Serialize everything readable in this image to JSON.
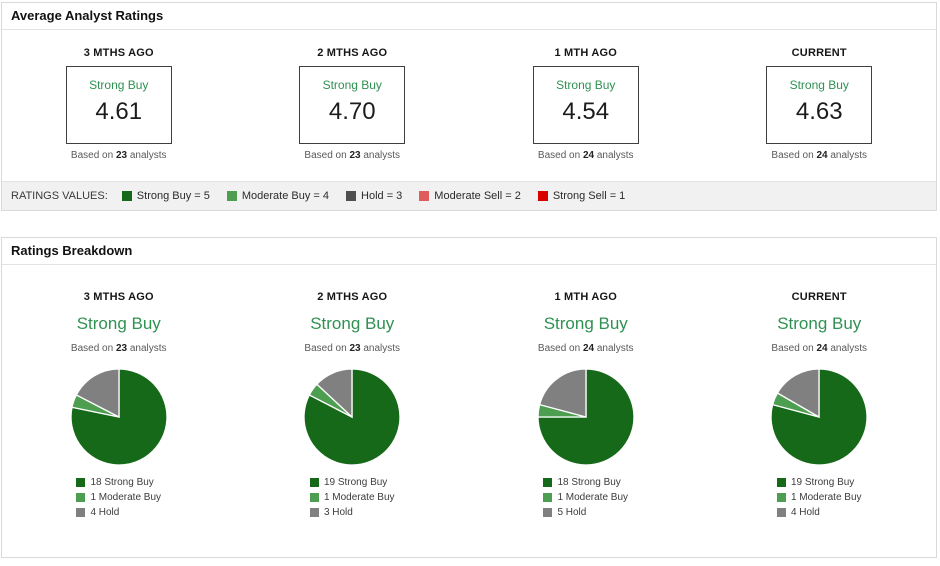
{
  "ratings": {
    "title": "Average Analyst Ratings",
    "based_prefix": "Based on",
    "based_suffix": "analysts",
    "legend_title": "RATINGS VALUES:",
    "columns": [
      {
        "period": "3 MTHS AGO",
        "label": "Strong Buy",
        "value": "4.61",
        "analysts": "23"
      },
      {
        "period": "2 MTHS AGO",
        "label": "Strong Buy",
        "value": "4.70",
        "analysts": "23"
      },
      {
        "period": "1 MTH AGO",
        "label": "Strong Buy",
        "value": "4.54",
        "analysts": "24"
      },
      {
        "period": "CURRENT",
        "label": "Strong Buy",
        "value": "4.63",
        "analysts": "24"
      }
    ],
    "legend": [
      {
        "label": "Strong Buy = 5",
        "color": "#156919"
      },
      {
        "label": "Moderate Buy = 4",
        "color": "#4d9e50"
      },
      {
        "label": "Hold = 3",
        "color": "#4f4f4f"
      },
      {
        "label": "Moderate Sell = 2",
        "color": "#e05c5c"
      },
      {
        "label": "Strong Sell = 1",
        "color": "#d90000"
      }
    ]
  },
  "breakdown": {
    "title": "Ratings Breakdown",
    "based_prefix": "Based on",
    "based_suffix": "analysts",
    "columns": [
      {
        "period": "3 MTHS AGO",
        "label": "Strong Buy",
        "analysts": "23",
        "slices": [
          {
            "label": "18 Strong Buy",
            "value": 18,
            "color": "#156919"
          },
          {
            "label": "1 Moderate Buy",
            "value": 1,
            "color": "#4d9e50"
          },
          {
            "label": "4 Hold",
            "value": 4,
            "color": "#808080"
          }
        ]
      },
      {
        "period": "2 MTHS AGO",
        "label": "Strong Buy",
        "analysts": "23",
        "slices": [
          {
            "label": "19 Strong Buy",
            "value": 19,
            "color": "#156919"
          },
          {
            "label": "1 Moderate Buy",
            "value": 1,
            "color": "#4d9e50"
          },
          {
            "label": "3 Hold",
            "value": 3,
            "color": "#808080"
          }
        ]
      },
      {
        "period": "1 MTH AGO",
        "label": "Strong Buy",
        "analysts": "24",
        "slices": [
          {
            "label": "18 Strong Buy",
            "value": 18,
            "color": "#156919"
          },
          {
            "label": "1 Moderate Buy",
            "value": 1,
            "color": "#4d9e50"
          },
          {
            "label": "5 Hold",
            "value": 5,
            "color": "#808080"
          }
        ]
      },
      {
        "period": "CURRENT",
        "label": "Strong Buy",
        "analysts": "24",
        "slices": [
          {
            "label": "19 Strong Buy",
            "value": 19,
            "color": "#156919"
          },
          {
            "label": "1 Moderate Buy",
            "value": 1,
            "color": "#4d9e50"
          },
          {
            "label": "4 Hold",
            "value": 4,
            "color": "#808080"
          }
        ]
      }
    ]
  },
  "chart_data": [
    {
      "type": "table",
      "title": "Average Analyst Ratings",
      "categories": [
        "3 MTHS AGO",
        "2 MTHS AGO",
        "1 MTH AGO",
        "CURRENT"
      ],
      "values": [
        4.61,
        4.7,
        4.54,
        4.63
      ],
      "consensus_labels": [
        "Strong Buy",
        "Strong Buy",
        "Strong Buy",
        "Strong Buy"
      ],
      "analyst_counts": [
        23,
        23,
        24,
        24
      ],
      "rating_scale": {
        "Strong Buy": 5,
        "Moderate Buy": 4,
        "Hold": 3,
        "Moderate Sell": 2,
        "Strong Sell": 1
      }
    },
    {
      "type": "pie",
      "title": "Ratings Breakdown - 3 MTHS AGO",
      "consensus": "Strong Buy",
      "total_analysts": 23,
      "categories": [
        "Strong Buy",
        "Moderate Buy",
        "Hold"
      ],
      "values": [
        18,
        1,
        4
      ],
      "legend_position": "bottom"
    },
    {
      "type": "pie",
      "title": "Ratings Breakdown - 2 MTHS AGO",
      "consensus": "Strong Buy",
      "total_analysts": 23,
      "categories": [
        "Strong Buy",
        "Moderate Buy",
        "Hold"
      ],
      "values": [
        19,
        1,
        3
      ],
      "legend_position": "bottom"
    },
    {
      "type": "pie",
      "title": "Ratings Breakdown - 1 MTH AGO",
      "consensus": "Strong Buy",
      "total_analysts": 24,
      "categories": [
        "Strong Buy",
        "Moderate Buy",
        "Hold"
      ],
      "values": [
        18,
        1,
        5
      ],
      "legend_position": "bottom"
    },
    {
      "type": "pie",
      "title": "Ratings Breakdown - CURRENT",
      "consensus": "Strong Buy",
      "total_analysts": 24,
      "categories": [
        "Strong Buy",
        "Moderate Buy",
        "Hold"
      ],
      "values": [
        19,
        1,
        4
      ],
      "legend_position": "bottom"
    }
  ]
}
